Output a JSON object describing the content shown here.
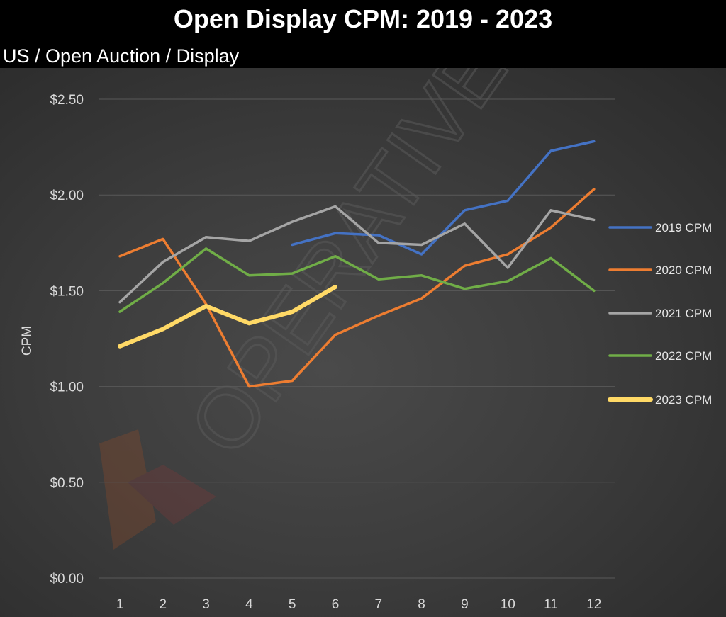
{
  "header": {
    "title": "Open Display CPM: 2019 - 2023",
    "subtitle": "US / Open Auction / Display"
  },
  "watermark_text": "OPERATIVE",
  "chart_data": {
    "type": "line",
    "title": "Open Display CPM: 2019 - 2023",
    "subtitle": "US / Open Auction / Display",
    "xlabel": "",
    "ylabel": "CPM",
    "x": [
      1,
      2,
      3,
      4,
      5,
      6,
      7,
      8,
      9,
      10,
      11,
      12
    ],
    "ylim": [
      0,
      2.5
    ],
    "yticks": [
      0,
      0.5,
      1.0,
      1.5,
      2.0,
      2.5
    ],
    "ytick_labels": [
      "$0.00",
      "$0.50",
      "$1.00",
      "$1.50",
      "$2.00",
      "$2.50"
    ],
    "grid": true,
    "legend_position": "right",
    "series": [
      {
        "name": "2019 CPM",
        "color": "#4472c4",
        "width": 3.5,
        "values": [
          null,
          null,
          null,
          null,
          1.74,
          1.8,
          1.79,
          1.69,
          1.92,
          1.97,
          2.23,
          2.28
        ]
      },
      {
        "name": "2020 CPM",
        "color": "#ed7d31",
        "width": 3.5,
        "values": [
          1.68,
          1.77,
          1.43,
          1.0,
          1.03,
          1.27,
          1.37,
          1.46,
          1.63,
          1.69,
          1.83,
          2.03
        ]
      },
      {
        "name": "2021 CPM",
        "color": "#a5a5a5",
        "width": 3.5,
        "values": [
          1.44,
          1.65,
          1.78,
          1.76,
          1.86,
          1.94,
          1.75,
          1.74,
          1.85,
          1.62,
          1.92,
          1.87
        ]
      },
      {
        "name": "2022 CPM",
        "color": "#70ad47",
        "width": 3.5,
        "values": [
          1.39,
          1.54,
          1.72,
          1.58,
          1.59,
          1.68,
          1.56,
          1.58,
          1.51,
          1.55,
          1.67,
          1.5
        ]
      },
      {
        "name": "2023 CPM",
        "color": "#ffd966",
        "width": 6,
        "values": [
          1.21,
          1.3,
          1.42,
          1.33,
          1.39,
          1.52,
          null,
          null,
          null,
          null,
          null,
          null
        ]
      }
    ]
  }
}
